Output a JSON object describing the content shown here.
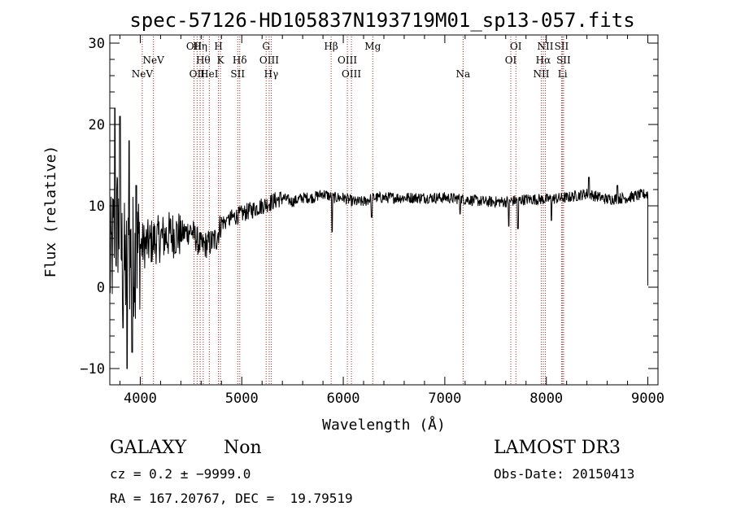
{
  "chart_data": {
    "type": "line",
    "title": "spec-57126-HD105837N193719M01_sp13-057.fits",
    "xlabel": "Wavelength (Å)",
    "ylabel": "Flux (relative)",
    "xlim": [
      3700,
      9100
    ],
    "ylim": [
      -12,
      31
    ],
    "xticks": [
      4000,
      5000,
      6000,
      7000,
      8000,
      9000
    ],
    "yticks": [
      -10,
      0,
      10,
      20,
      30
    ],
    "xtick_labels": [
      "4000",
      "5000",
      "6000",
      "7000",
      "8000",
      "9000"
    ],
    "ytick_labels": [
      "−10",
      "0",
      "10",
      "20",
      "30"
    ],
    "grid": false,
    "series": [
      {
        "name": "flux",
        "anchors": [
          [
            3700,
            2.0
          ],
          [
            3740,
            6.0
          ],
          [
            3780,
            8.0
          ],
          [
            3820,
            4.0
          ],
          [
            3860,
            2.0
          ],
          [
            3900,
            4.0
          ],
          [
            3950,
            4.0
          ],
          [
            4000,
            5.0
          ],
          [
            4100,
            5.5
          ],
          [
            4200,
            6.0
          ],
          [
            4300,
            6.5
          ],
          [
            4400,
            6.5
          ],
          [
            4500,
            7.0
          ],
          [
            4600,
            5.0
          ],
          [
            4700,
            5.5
          ],
          [
            4750,
            6.0
          ],
          [
            4800,
            8.0
          ],
          [
            4850,
            8.0
          ],
          [
            4900,
            8.5
          ],
          [
            5000,
            9.0
          ],
          [
            5100,
            9.5
          ],
          [
            5200,
            10.0
          ],
          [
            5300,
            10.5
          ],
          [
            5400,
            11.0
          ],
          [
            5500,
            10.5
          ],
          [
            5600,
            11.0
          ],
          [
            5700,
            11.0
          ],
          [
            5800,
            11.5
          ],
          [
            5900,
            11.0
          ],
          [
            6000,
            11.0
          ],
          [
            6100,
            10.5
          ],
          [
            6200,
            10.5
          ],
          [
            6300,
            11.0
          ],
          [
            6400,
            11.0
          ],
          [
            6500,
            11.0
          ],
          [
            6600,
            11.0
          ],
          [
            6800,
            11.0
          ],
          [
            7000,
            11.0
          ],
          [
            7200,
            10.8
          ],
          [
            7400,
            10.5
          ],
          [
            7600,
            10.5
          ],
          [
            7800,
            10.8
          ],
          [
            8000,
            10.8
          ],
          [
            8200,
            11.0
          ],
          [
            8400,
            11.5
          ],
          [
            8600,
            10.8
          ],
          [
            8800,
            11.0
          ],
          [
            9000,
            11.5
          ]
        ],
        "dips": [
          [
            3870,
            -10.0
          ],
          [
            3920,
            -8.0
          ],
          [
            3830,
            -5.0
          ],
          [
            4860,
            8.5
          ],
          [
            5890,
            6.8
          ],
          [
            6280,
            8.6
          ],
          [
            7150,
            9.0
          ],
          [
            7630,
            7.5
          ],
          [
            7720,
            7.2
          ],
          [
            8050,
            8.2
          ]
        ],
        "spikes": [
          [
            3750,
            22.0
          ],
          [
            3800,
            21.0
          ],
          [
            3890,
            18.0
          ],
          [
            3960,
            12.5
          ],
          [
            8420,
            13.5
          ],
          [
            8700,
            12.5
          ]
        ],
        "end_drop": [
          9000,
          0.2
        ]
      }
    ],
    "lines": [
      {
        "label": "NeV",
        "x": 4020,
        "row": 2
      },
      {
        "label": "NeV",
        "x": 4130,
        "row": 1
      },
      {
        "label": "OII",
        "x": 4530,
        "row": 0
      },
      {
        "label": "OII",
        "x": 4560,
        "row": 2
      },
      {
        "label": "Hη",
        "x": 4590,
        "row": 0
      },
      {
        "label": "Hθ",
        "x": 4620,
        "row": 1
      },
      {
        "label": "HeI",
        "x": 4680,
        "row": 2
      },
      {
        "label": "H",
        "x": 4770,
        "row": 0
      },
      {
        "label": "K",
        "x": 4790,
        "row": 1
      },
      {
        "label": "SII",
        "x": 4960,
        "row": 2
      },
      {
        "label": "Hδ",
        "x": 4980,
        "row": 1
      },
      {
        "label": "G",
        "x": 5240,
        "row": 0
      },
      {
        "label": "OIII",
        "x": 5270,
        "row": 1
      },
      {
        "label": "Hγ",
        "x": 5290,
        "row": 2
      },
      {
        "label": "Hβ",
        "x": 5880,
        "row": 0
      },
      {
        "label": "OIII",
        "x": 6040,
        "row": 1
      },
      {
        "label": "OIII",
        "x": 6080,
        "row": 2
      },
      {
        "label": "Mg",
        "x": 6290,
        "row": 0
      },
      {
        "label": "Na",
        "x": 7180,
        "row": 2
      },
      {
        "label": "OI",
        "x": 7650,
        "row": 1
      },
      {
        "label": "OI",
        "x": 7700,
        "row": 0
      },
      {
        "label": "NII",
        "x": 7950,
        "row": 2
      },
      {
        "label": "Hα",
        "x": 7970,
        "row": 1
      },
      {
        "label": "NII",
        "x": 7990,
        "row": 0
      },
      {
        "label": "SII",
        "x": 8150,
        "row": 0
      },
      {
        "label": "Li",
        "x": 8160,
        "row": 2
      },
      {
        "label": "SII",
        "x": 8170,
        "row": 1
      }
    ]
  },
  "info": {
    "object_class": "GALAXY",
    "subclass": "Non",
    "survey": "LAMOST DR3",
    "redshift": "cz = 0.2 ± −9999.0",
    "obs_date": "Obs-Date: 20150413",
    "coords": "RA = 167.20767, DEC =  19.79519"
  }
}
